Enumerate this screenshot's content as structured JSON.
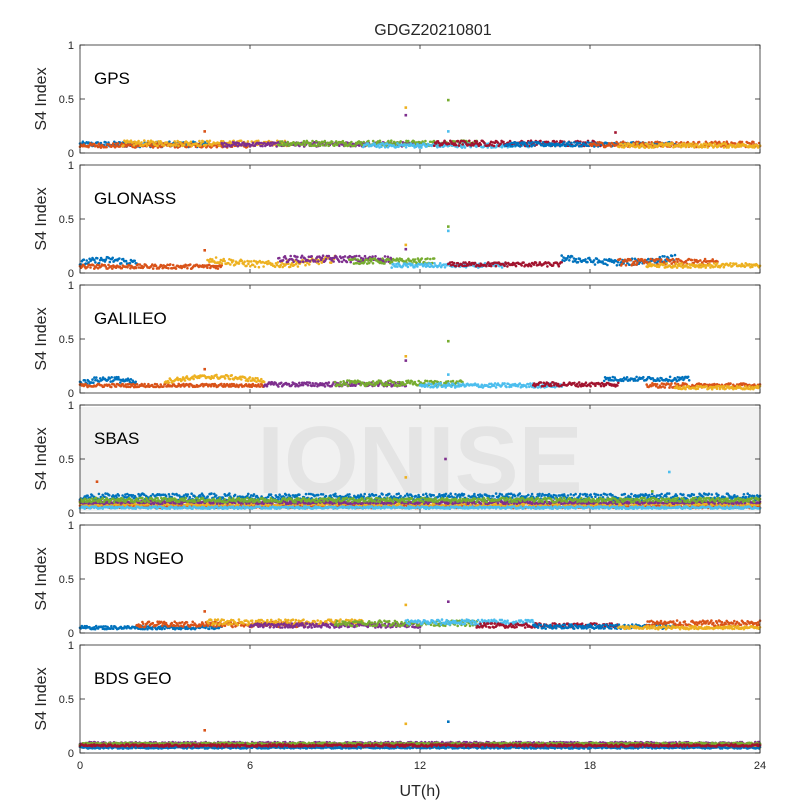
{
  "title": "GDGZ20210801",
  "watermark": "IONISE",
  "chart_data": {
    "type": "scatter",
    "xlabel": "UT(h)",
    "ylabel": "S4 Index",
    "xlim": [
      0,
      24
    ],
    "ylim": [
      0,
      1
    ],
    "x_ticks": [
      0,
      6,
      12,
      18,
      24
    ],
    "y_ticks": [
      0,
      0.5,
      1
    ],
    "y_tick_labels": [
      "0",
      "0.5",
      "1"
    ],
    "grid": false,
    "panels": [
      {
        "label": "GPS",
        "colors": [
          "#0072BD",
          "#D95319",
          "#EDB120",
          "#7E2F8E",
          "#77AC30",
          "#4DBEEE",
          "#A2142F"
        ],
        "tracks": [
          {
            "x0": 0.0,
            "x1": 4.5,
            "base": 0.08,
            "spread": 0.025
          },
          {
            "x0": 0.0,
            "x1": 6.0,
            "base": 0.07,
            "spread": 0.02
          },
          {
            "x0": 1.5,
            "x1": 7.5,
            "base": 0.09,
            "spread": 0.025
          },
          {
            "x0": 5.0,
            "x1": 12.0,
            "base": 0.08,
            "spread": 0.02
          },
          {
            "x0": 7.0,
            "x1": 14.0,
            "base": 0.09,
            "spread": 0.025
          },
          {
            "x0": 10.0,
            "x1": 16.0,
            "base": 0.07,
            "spread": 0.02
          },
          {
            "x0": 12.5,
            "x1": 18.5,
            "base": 0.09,
            "spread": 0.025
          },
          {
            "x0": 15.0,
            "x1": 21.0,
            "base": 0.08,
            "spread": 0.02
          },
          {
            "x0": 18.0,
            "x1": 24.0,
            "base": 0.08,
            "spread": 0.025
          },
          {
            "x0": 19.0,
            "x1": 24.0,
            "base": 0.07,
            "spread": 0.02
          }
        ],
        "spikes": [
          {
            "x": 4.4,
            "y": 0.2
          },
          {
            "x": 11.5,
            "y": 0.42
          },
          {
            "x": 11.5,
            "y": 0.35
          },
          {
            "x": 13.0,
            "y": 0.49
          },
          {
            "x": 13.0,
            "y": 0.2
          },
          {
            "x": 18.9,
            "y": 0.19
          }
        ]
      },
      {
        "label": "GLONASS",
        "colors": [
          "#0072BD",
          "#D95319",
          "#EDB120",
          "#7E2F8E",
          "#77AC30",
          "#4DBEEE",
          "#A2142F"
        ],
        "tracks": [
          {
            "x0": 0.0,
            "x1": 2.0,
            "base": 0.09,
            "spread": 0.03,
            "slope": 0.03
          },
          {
            "x0": 0.0,
            "x1": 5.0,
            "base": 0.06,
            "spread": 0.02
          },
          {
            "x0": 4.5,
            "x1": 9.0,
            "base": 0.13,
            "spread": 0.03,
            "slope": -0.05
          },
          {
            "x0": 7.0,
            "x1": 11.0,
            "base": 0.13,
            "spread": 0.03
          },
          {
            "x0": 9.5,
            "x1": 12.5,
            "base": 0.11,
            "spread": 0.025
          },
          {
            "x0": 11.0,
            "x1": 15.0,
            "base": 0.07,
            "spread": 0.02
          },
          {
            "x0": 13.0,
            "x1": 17.0,
            "base": 0.08,
            "spread": 0.02
          },
          {
            "x0": 17.0,
            "x1": 21.0,
            "base": 0.14,
            "spread": 0.03,
            "slope": -0.04
          },
          {
            "x0": 19.0,
            "x1": 22.5,
            "base": 0.1,
            "spread": 0.03
          },
          {
            "x0": 20.0,
            "x1": 24.0,
            "base": 0.07,
            "spread": 0.02
          }
        ],
        "spikes": [
          {
            "x": 4.4,
            "y": 0.21
          },
          {
            "x": 11.5,
            "y": 0.26
          },
          {
            "x": 11.5,
            "y": 0.22
          },
          {
            "x": 13.0,
            "y": 0.43
          },
          {
            "x": 13.0,
            "y": 0.39
          }
        ]
      },
      {
        "label": "GALILEO",
        "colors": [
          "#0072BD",
          "#D95319",
          "#EDB120",
          "#7E2F8E",
          "#77AC30",
          "#4DBEEE",
          "#A2142F"
        ],
        "tracks": [
          {
            "x0": 0.0,
            "x1": 2.0,
            "base": 0.09,
            "spread": 0.025,
            "slope": 0.04
          },
          {
            "x0": 0.0,
            "x1": 6.5,
            "base": 0.07,
            "spread": 0.015
          },
          {
            "x0": 3.0,
            "x1": 6.5,
            "base": 0.11,
            "spread": 0.02,
            "slope": 0.04
          },
          {
            "x0": 6.5,
            "x1": 11.5,
            "base": 0.08,
            "spread": 0.02
          },
          {
            "x0": 9.0,
            "x1": 13.5,
            "base": 0.09,
            "spread": 0.025
          },
          {
            "x0": 12.0,
            "x1": 17.0,
            "base": 0.07,
            "spread": 0.02
          },
          {
            "x0": 16.0,
            "x1": 19.0,
            "base": 0.08,
            "spread": 0.02
          },
          {
            "x0": 18.5,
            "x1": 21.5,
            "base": 0.13,
            "spread": 0.02
          },
          {
            "x0": 20.0,
            "x1": 24.0,
            "base": 0.07,
            "spread": 0.02
          },
          {
            "x0": 21.0,
            "x1": 24.0,
            "base": 0.05,
            "spread": 0.015
          }
        ],
        "spikes": [
          {
            "x": 4.4,
            "y": 0.22
          },
          {
            "x": 11.5,
            "y": 0.34
          },
          {
            "x": 11.5,
            "y": 0.3
          },
          {
            "x": 13.0,
            "y": 0.48
          },
          {
            "x": 13.0,
            "y": 0.17
          }
        ]
      },
      {
        "label": "SBAS",
        "colors": [
          "#0072BD",
          "#D95319",
          "#EDB120",
          "#7E2F8E",
          "#77AC30",
          "#4DBEEE"
        ],
        "tracks": [
          {
            "x0": 0.0,
            "x1": 24.0,
            "base": 0.15,
            "spread": 0.03
          },
          {
            "x0": 0.0,
            "x1": 24.0,
            "base": 0.06,
            "spread": 0.015
          },
          {
            "x0": 0.0,
            "x1": 24.0,
            "base": 0.08,
            "spread": 0.015
          },
          {
            "x0": 0.0,
            "x1": 24.0,
            "base": 0.1,
            "spread": 0.015
          },
          {
            "x0": 0.0,
            "x1": 24.0,
            "base": 0.12,
            "spread": 0.02
          },
          {
            "x0": 0.0,
            "x1": 24.0,
            "base": 0.05,
            "spread": 0.01
          }
        ],
        "spikes": [
          {
            "x": 0.6,
            "y": 0.29
          },
          {
            "x": 11.5,
            "y": 0.33
          },
          {
            "x": 12.9,
            "y": 0.5
          },
          {
            "x": 20.2,
            "y": 0.2
          },
          {
            "x": 20.8,
            "y": 0.38
          }
        ]
      },
      {
        "label": "BDS NGEO",
        "colors": [
          "#0072BD",
          "#D95319",
          "#EDB120",
          "#7E2F8E",
          "#77AC30",
          "#4DBEEE",
          "#A2142F"
        ],
        "tracks": [
          {
            "x0": 0.0,
            "x1": 5.0,
            "base": 0.05,
            "spread": 0.015
          },
          {
            "x0": 2.0,
            "x1": 8.0,
            "base": 0.08,
            "spread": 0.025
          },
          {
            "x0": 4.5,
            "x1": 10.0,
            "base": 0.1,
            "spread": 0.025
          },
          {
            "x0": 6.0,
            "x1": 12.0,
            "base": 0.07,
            "spread": 0.02
          },
          {
            "x0": 9.0,
            "x1": 14.0,
            "base": 0.09,
            "spread": 0.025
          },
          {
            "x0": 11.5,
            "x1": 16.0,
            "base": 0.1,
            "spread": 0.025
          },
          {
            "x0": 14.0,
            "x1": 19.0,
            "base": 0.07,
            "spread": 0.02
          },
          {
            "x0": 16.0,
            "x1": 21.0,
            "base": 0.06,
            "spread": 0.02
          },
          {
            "x0": 20.0,
            "x1": 24.0,
            "base": 0.09,
            "spread": 0.025
          },
          {
            "x0": 19.0,
            "x1": 24.0,
            "base": 0.05,
            "spread": 0.015
          }
        ],
        "spikes": [
          {
            "x": 4.4,
            "y": 0.2
          },
          {
            "x": 11.5,
            "y": 0.26
          },
          {
            "x": 13.0,
            "y": 0.29
          }
        ]
      },
      {
        "label": "BDS GEO",
        "colors": [
          "#7E2F8E",
          "#D95319",
          "#EDB120",
          "#0072BD",
          "#77AC30",
          "#A2142F"
        ],
        "tracks": [
          {
            "x0": 0.0,
            "x1": 24.0,
            "base": 0.09,
            "spread": 0.012
          },
          {
            "x0": 0.0,
            "x1": 24.0,
            "base": 0.075,
            "spread": 0.01
          },
          {
            "x0": 0.0,
            "x1": 24.0,
            "base": 0.06,
            "spread": 0.01
          },
          {
            "x0": 0.0,
            "x1": 24.0,
            "base": 0.05,
            "spread": 0.008
          },
          {
            "x0": 0.0,
            "x1": 24.0,
            "base": 0.085,
            "spread": 0.01
          },
          {
            "x0": 0.0,
            "x1": 24.0,
            "base": 0.07,
            "spread": 0.01
          }
        ],
        "spikes": [
          {
            "x": 4.4,
            "y": 0.21
          },
          {
            "x": 11.5,
            "y": 0.27
          },
          {
            "x": 13.0,
            "y": 0.29
          }
        ]
      }
    ]
  }
}
